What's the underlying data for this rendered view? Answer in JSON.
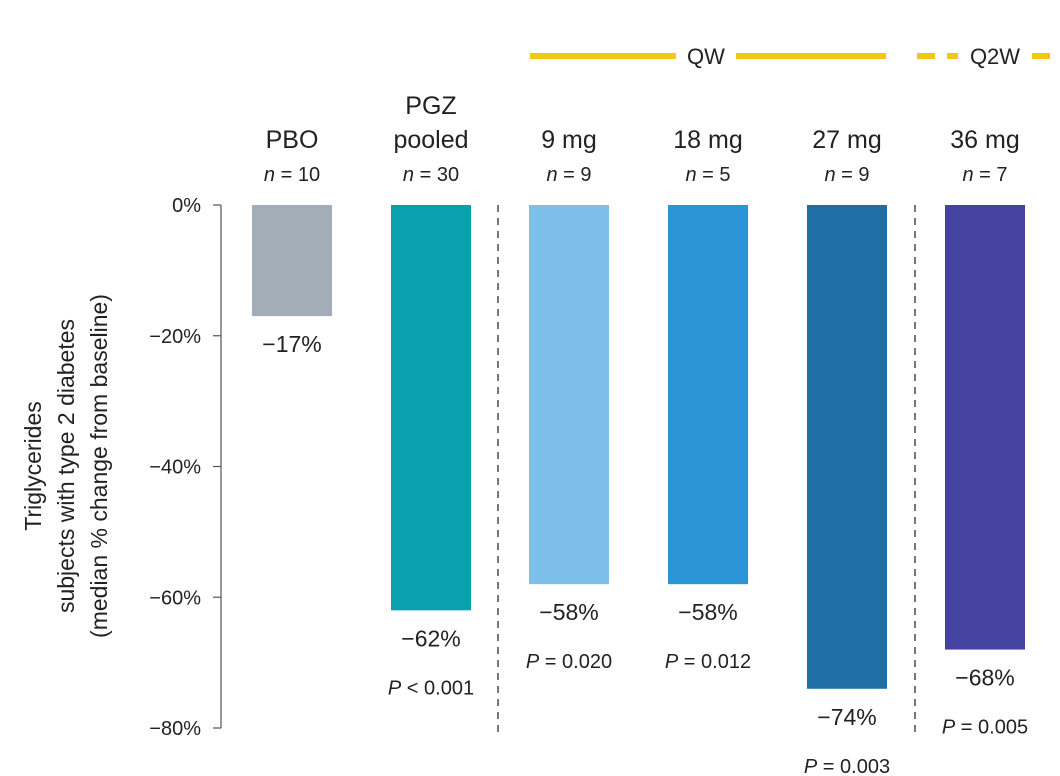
{
  "chart_data": {
    "type": "bar",
    "categories": [
      "PBO",
      "PGZ pooled",
      "9 mg",
      "18 mg",
      "27 mg",
      "36 mg"
    ],
    "category_lines": [
      [
        "PBO"
      ],
      [
        "PGZ",
        "pooled"
      ],
      [
        "9 mg"
      ],
      [
        "18 mg"
      ],
      [
        "27 mg"
      ],
      [
        "36 mg"
      ]
    ],
    "n_values": [
      10,
      30,
      9,
      5,
      9,
      7
    ],
    "n_prefix": "n",
    "values": [
      -17,
      -62,
      -58,
      -58,
      -74,
      -68
    ],
    "value_labels": [
      "−17%",
      "−62%",
      "−58%",
      "−58%",
      "−74%",
      "−68%"
    ],
    "p_values": [
      "",
      "< 0.001",
      "= 0.020",
      "= 0.012",
      "= 0.003",
      "= 0.005"
    ],
    "p_prefix": "P",
    "colors": [
      "#a3adb7",
      "#0aa0ad",
      "#7dbfe8",
      "#2a96d8",
      "#1f6fa6",
      "#4444a0"
    ],
    "ylabel_lines": [
      "Triglycerides",
      "subjects with type 2 diabetes",
      "(median % change from baseline)"
    ],
    "ylim": [
      -80,
      0
    ],
    "yticks": [
      0,
      -20,
      -40,
      -60,
      -80
    ],
    "ytick_labels": [
      "0%",
      "−20%",
      "−40%",
      "−60%",
      "−80%"
    ],
    "groups": [
      {
        "label": "QW",
        "style": "solid",
        "categories": [
          "9 mg",
          "18 mg",
          "27 mg"
        ]
      },
      {
        "label": "Q2W",
        "style": "dashed",
        "categories": [
          "36 mg"
        ]
      }
    ],
    "group_color": "#f2c811",
    "axis_color": "#555555",
    "separator_color": "#555555"
  }
}
